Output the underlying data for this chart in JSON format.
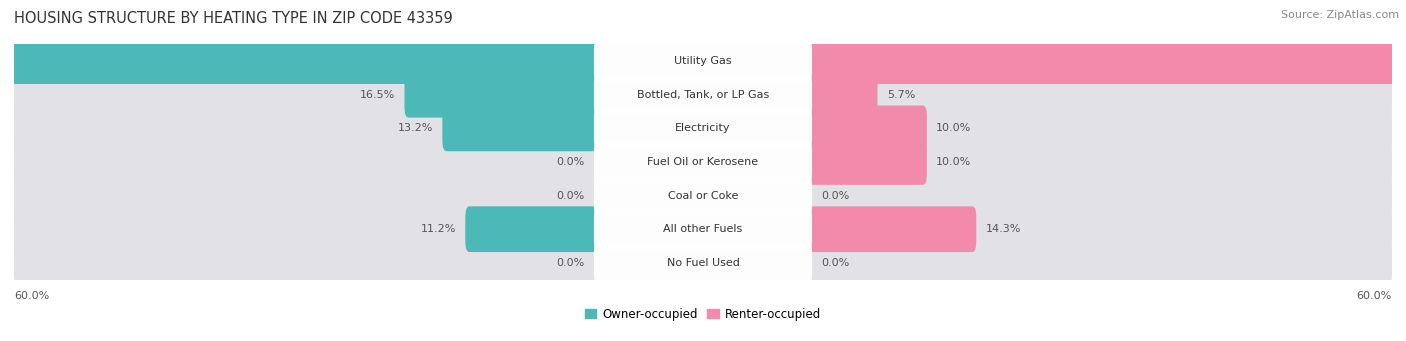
{
  "title": "HOUSING STRUCTURE BY HEATING TYPE IN ZIP CODE 43359",
  "source": "Source: ZipAtlas.com",
  "categories": [
    "Utility Gas",
    "Bottled, Tank, or LP Gas",
    "Electricity",
    "Fuel Oil or Kerosene",
    "Coal or Coke",
    "All other Fuels",
    "No Fuel Used"
  ],
  "owner_values": [
    59.2,
    16.5,
    13.2,
    0.0,
    0.0,
    11.2,
    0.0
  ],
  "renter_values": [
    60.0,
    5.7,
    10.0,
    10.0,
    0.0,
    14.3,
    0.0
  ],
  "owner_color": "#4cb8b8",
  "renter_color": "#f28aab",
  "owner_label": "Owner-occupied",
  "renter_label": "Renter-occupied",
  "axis_label_left": "60.0%",
  "axis_label_right": "60.0%",
  "max_val": 60.0,
  "bar_bg_color": "#e2e2e6",
  "title_fontsize": 10.5,
  "source_fontsize": 8,
  "label_fontsize": 8,
  "category_fontsize": 8
}
